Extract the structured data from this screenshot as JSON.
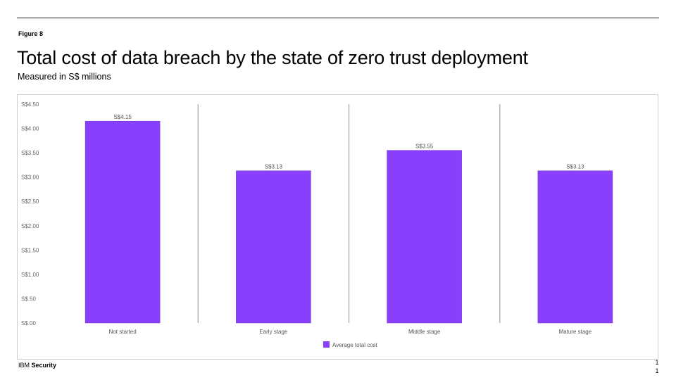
{
  "figure_label": "Figure 8",
  "page_number_lines": [
    "1",
    "1"
  ],
  "footer": {
    "brand": "IBM",
    "product": "Security"
  },
  "colors": {
    "bar": "#8a3ffc",
    "divider": "#b5b5b5",
    "frame": "#cfcfcf"
  },
  "chart_data": {
    "type": "bar",
    "title": "Total cost of data breach by the state of zero trust deployment",
    "subtitle": "Measured in S$ millions",
    "categories": [
      "Not started",
      "Early stage",
      "Middle stage",
      "Mature stage"
    ],
    "series": [
      {
        "name": "Average total cost",
        "values": [
          4.15,
          3.13,
          3.55,
          3.13
        ]
      }
    ],
    "data_labels": [
      "S$4.15",
      "S$3.13",
      "S$3.55",
      "S$3.13"
    ],
    "ylim": [
      0,
      4.5
    ],
    "yticks": [
      0,
      0.5,
      1,
      1.5,
      2,
      2.5,
      3,
      3.5,
      4,
      4.5
    ],
    "ytick_labels": [
      "S$.00",
      "S$.50",
      "S$1.00",
      "S$1.50",
      "S$2.00",
      "S$2.50",
      "S$3.00",
      "S$3.50",
      "S$4.00",
      "S$4.50"
    ],
    "xlabel": "",
    "ylabel": "",
    "grid": false,
    "legend_position": "bottom-center"
  }
}
